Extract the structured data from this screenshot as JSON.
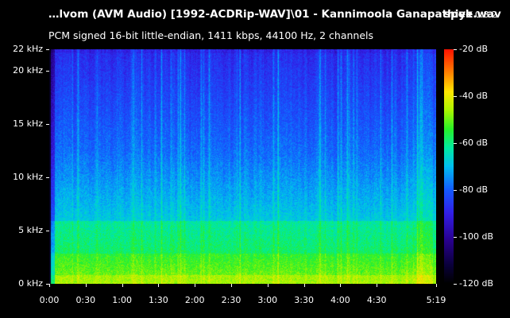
{
  "header": {
    "file_title": "…lvom (AVM Audio) [1992-ACDRip-WAV]\\01 - Kannimoola Ganapathiye.wav",
    "app_name": "spek",
    "app_version": "0.8.2",
    "stream_info": "PCM signed 16-bit little-endian, 1411 kbps, 44100 Hz, 2 channels"
  },
  "spectrogram": {
    "frequency_axis": {
      "ticks": [
        {
          "label": "22 kHz",
          "khz": 22
        },
        {
          "label": "20 kHz",
          "khz": 20
        },
        {
          "label": "15 kHz",
          "khz": 15
        },
        {
          "label": "10 kHz",
          "khz": 10
        },
        {
          "label": "5 kHz",
          "khz": 5
        },
        {
          "label": "0 kHz",
          "khz": 0
        }
      ],
      "max_khz": 22
    },
    "time_axis": {
      "ticks": [
        {
          "label": "0:00",
          "seconds": 0
        },
        {
          "label": "0:30",
          "seconds": 30
        },
        {
          "label": "1:00",
          "seconds": 60
        },
        {
          "label": "1:30",
          "seconds": 90
        },
        {
          "label": "2:00",
          "seconds": 120
        },
        {
          "label": "2:30",
          "seconds": 150
        },
        {
          "label": "3:00",
          "seconds": 180
        },
        {
          "label": "3:30",
          "seconds": 210
        },
        {
          "label": "4:00",
          "seconds": 240
        },
        {
          "label": "4:30",
          "seconds": 270
        },
        {
          "label": "5:19",
          "seconds": 319
        }
      ],
      "duration_seconds": 319
    },
    "db_scale": {
      "ticks": [
        {
          "label": "-20 dB",
          "db": -20
        },
        {
          "label": "-40 dB",
          "db": -40
        },
        {
          "label": "-60 dB",
          "db": -60
        },
        {
          "label": "-80 dB",
          "db": -80
        },
        {
          "label": "-100 dB",
          "db": -100
        },
        {
          "label": "-120 dB",
          "db": -120
        }
      ],
      "max_db": -20,
      "min_db": -120
    },
    "colors": {
      "background": "#000000",
      "text": "#ffffff"
    }
  }
}
